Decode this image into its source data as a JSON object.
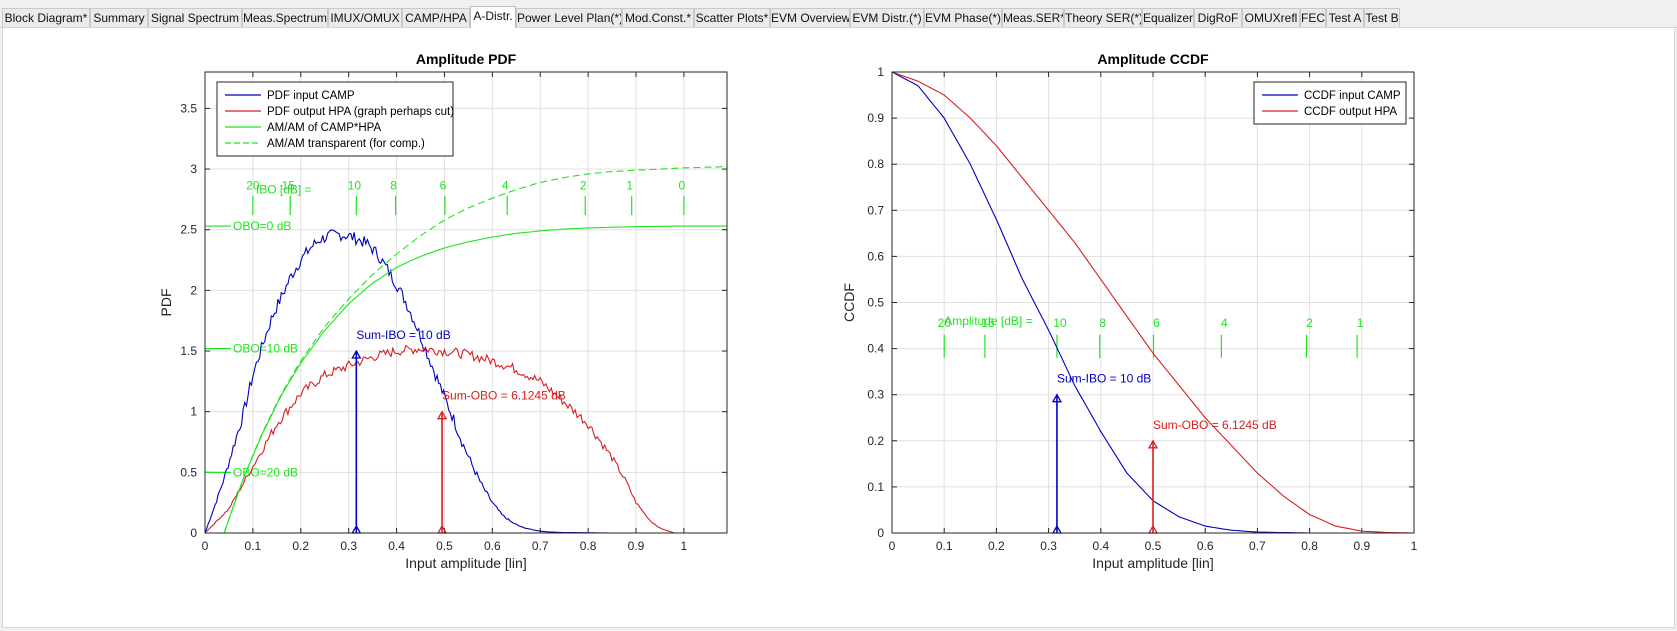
{
  "tabs": [
    {
      "label": "Block Diagram*"
    },
    {
      "label": "Summary"
    },
    {
      "label": "Signal Spectrum"
    },
    {
      "label": "Meas.Spectrum"
    },
    {
      "label": "IMUX/OMUX"
    },
    {
      "label": "CAMP/HPA"
    },
    {
      "label": "A-Distr.",
      "active": true
    },
    {
      "label": "Power Level Plan(*)"
    },
    {
      "label": "Mod.Const.*"
    },
    {
      "label": "Scatter Plots*"
    },
    {
      "label": "EVM Overview"
    },
    {
      "label": "EVM Distr.(*)"
    },
    {
      "label": "EVM Phase(*)"
    },
    {
      "label": "Meas.SER*"
    },
    {
      "label": "Theory SER(*)"
    },
    {
      "label": "Equalizer"
    },
    {
      "label": "DigRoF"
    },
    {
      "label": "OMUXrefl"
    },
    {
      "label": "FEC"
    },
    {
      "label": "Test A"
    },
    {
      "label": "Test B"
    }
  ],
  "colors": {
    "blue": "#0000bf",
    "red": "#d62020",
    "green": "#1ee61e",
    "grid": "#e0e0e0",
    "axis": "#262626"
  },
  "chart_data": [
    {
      "type": "line",
      "title": "Amplitude PDF",
      "xlabel": "Input amplitude [lin]",
      "ylabel": "PDF",
      "xlim": [
        0,
        1.09
      ],
      "ylim": [
        0,
        3.8
      ],
      "xticks": [
        0,
        0.1,
        0.2,
        0.3,
        0.4,
        0.5,
        0.6,
        0.7,
        0.8,
        0.9,
        1
      ],
      "yticks": [
        0,
        0.5,
        1,
        1.5,
        2,
        2.5,
        3,
        3.5
      ],
      "xtick_labels": [
        "0",
        "0.1",
        "0.2",
        "0.3",
        "0.4",
        "0.5",
        "0.6",
        "0.7",
        "0.8",
        "0.9",
        "1"
      ],
      "ytick_labels": [
        "0",
        "0.5",
        "1",
        "1.5",
        "2",
        "2.5",
        "3",
        "3.5"
      ],
      "grid": true,
      "legend": {
        "placement": "top-left",
        "entries": [
          {
            "label": "PDF input CAMP",
            "color": "#0000bf",
            "dash": false
          },
          {
            "label": "PDF output HPA (graph perhaps cut)",
            "color": "#d62020",
            "dash": false
          },
          {
            "label": "AM/AM of CAMP*HPA",
            "color": "#1ee61e",
            "dash": false
          },
          {
            "label": "AM/AM transparent (for comp.)",
            "color": "#1ee61e",
            "dash": true
          }
        ]
      },
      "series": [
        {
          "name": "PDF input CAMP",
          "color": "#0000bf",
          "dash": false,
          "noise": 0.05,
          "x": [
            0,
            0.02,
            0.04,
            0.06,
            0.08,
            0.1,
            0.12,
            0.14,
            0.16,
            0.18,
            0.2,
            0.22,
            0.24,
            0.26,
            0.28,
            0.3,
            0.32,
            0.34,
            0.36,
            0.38,
            0.4,
            0.42,
            0.44,
            0.46,
            0.48,
            0.5,
            0.52,
            0.54,
            0.56,
            0.58,
            0.6,
            0.62,
            0.64,
            0.66,
            0.68,
            0.7,
            0.72,
            0.75,
            0.8,
            0.85,
            0.9
          ],
          "y": [
            0,
            0.22,
            0.45,
            0.72,
            0.98,
            1.3,
            1.55,
            1.78,
            1.95,
            2.12,
            2.25,
            2.35,
            2.42,
            2.45,
            2.46,
            2.45,
            2.42,
            2.38,
            2.3,
            2.18,
            2.05,
            1.9,
            1.72,
            1.52,
            1.32,
            1.12,
            0.93,
            0.72,
            0.54,
            0.38,
            0.25,
            0.15,
            0.09,
            0.05,
            0.03,
            0.015,
            0.008,
            0.004,
            0.002,
            0,
            0
          ]
        },
        {
          "name": "PDF output HPA (graph perhaps cut)",
          "color": "#d62020",
          "dash": false,
          "noise": 0.04,
          "x": [
            0,
            0.05,
            0.1,
            0.15,
            0.2,
            0.25,
            0.3,
            0.35,
            0.4,
            0.45,
            0.5,
            0.55,
            0.6,
            0.65,
            0.7,
            0.75,
            0.8,
            0.85,
            0.88,
            0.9,
            0.93,
            0.95,
            0.98,
            1.0
          ],
          "y": [
            0,
            0.2,
            0.55,
            0.9,
            1.15,
            1.3,
            1.38,
            1.45,
            1.5,
            1.52,
            1.5,
            1.47,
            1.42,
            1.35,
            1.25,
            1.08,
            0.9,
            0.62,
            0.42,
            0.25,
            0.1,
            0.04,
            0,
            0
          ]
        },
        {
          "name": "AM/AM of CAMP*HPA",
          "color": "#1ee61e",
          "dash": false,
          "noise": 0,
          "x": [
            0.04,
            0.08,
            0.12,
            0.16,
            0.2,
            0.25,
            0.3,
            0.35,
            0.4,
            0.45,
            0.5,
            0.55,
            0.6,
            0.65,
            0.7,
            0.75,
            0.8,
            0.85,
            0.9,
            0.95,
            1.0,
            1.09
          ],
          "y": [
            0,
            0.45,
            0.82,
            1.14,
            1.4,
            1.67,
            1.89,
            2.06,
            2.19,
            2.28,
            2.35,
            2.4,
            2.44,
            2.47,
            2.49,
            2.505,
            2.515,
            2.52,
            2.525,
            2.528,
            2.53,
            2.53
          ]
        },
        {
          "name": "AM/AM transparent (for comp.)",
          "color": "#1ee61e",
          "dash": true,
          "noise": 0,
          "x": [
            0.04,
            0.08,
            0.12,
            0.16,
            0.2,
            0.25,
            0.3,
            0.35,
            0.4,
            0.45,
            0.5,
            0.55,
            0.6,
            0.65,
            0.7,
            0.75,
            0.8,
            0.85,
            0.9,
            0.95,
            1.0,
            1.09
          ],
          "y": [
            0,
            0.45,
            0.83,
            1.15,
            1.42,
            1.7,
            1.93,
            2.13,
            2.3,
            2.45,
            2.58,
            2.68,
            2.76,
            2.83,
            2.89,
            2.93,
            2.96,
            2.98,
            2.99,
            3.0,
            3.01,
            3.02
          ]
        }
      ],
      "markers": [
        {
          "label": "Sum-IBO = 10 dB",
          "x": 0.316,
          "y": 1.5,
          "color": "#0000bf"
        },
        {
          "label": "Sum-OBO = 6.1245 dB",
          "x": 0.495,
          "y": 1.0,
          "color": "#d62020"
        }
      ],
      "ibo_scale": {
        "title": "IBO [dB] =",
        "y_low": 2.62,
        "y_high": 2.78,
        "ticks": [
          {
            "label": "20",
            "x": 0.1
          },
          {
            "label": "15",
            "x": 0.178
          },
          {
            "label": "10",
            "x": 0.316
          },
          {
            "label": "8",
            "x": 0.398
          },
          {
            "label": "6",
            "x": 0.501
          },
          {
            "label": "4",
            "x": 0.631
          },
          {
            "label": "2",
            "x": 0.794
          },
          {
            "label": "1",
            "x": 0.891
          },
          {
            "label": "0",
            "x": 1.0
          }
        ]
      },
      "obo_labels": [
        {
          "label": "OBO=0 dB",
          "y": 2.53
        },
        {
          "label": "OBO=10 dB",
          "y": 1.52
        },
        {
          "label": "OBO=20 dB",
          "y": 0.5
        }
      ]
    },
    {
      "type": "line",
      "title": "Amplitude CCDF",
      "xlabel": "Input amplitude [lin]",
      "ylabel": "CCDF",
      "xlim": [
        0,
        1
      ],
      "ylim": [
        0,
        1
      ],
      "xticks": [
        0,
        0.1,
        0.2,
        0.3,
        0.4,
        0.5,
        0.6,
        0.7,
        0.8,
        0.9,
        1
      ],
      "yticks": [
        0,
        0.1,
        0.2,
        0.3,
        0.4,
        0.5,
        0.6,
        0.7,
        0.8,
        0.9,
        1
      ],
      "xtick_labels": [
        "0",
        "0.1",
        "0.2",
        "0.3",
        "0.4",
        "0.5",
        "0.6",
        "0.7",
        "0.8",
        "0.9",
        "1"
      ],
      "ytick_labels": [
        "0",
        "0.1",
        "0.2",
        "0.3",
        "0.4",
        "0.5",
        "0.6",
        "0.7",
        "0.8",
        "0.9",
        "1"
      ],
      "grid": true,
      "legend": {
        "placement": "top-right",
        "entries": [
          {
            "label": "CCDF input CAMP",
            "color": "#0000bf",
            "dash": false
          },
          {
            "label": "CCDF output HPA",
            "color": "#d62020",
            "dash": false
          }
        ]
      },
      "series": [
        {
          "name": "CCDF input CAMP",
          "color": "#0000bf",
          "dash": false,
          "noise": 0,
          "x": [
            0,
            0.05,
            0.1,
            0.15,
            0.2,
            0.25,
            0.3,
            0.35,
            0.4,
            0.45,
            0.5,
            0.55,
            0.6,
            0.65,
            0.7,
            0.75,
            0.8,
            0.85,
            0.9,
            1.0
          ],
          "y": [
            1,
            0.97,
            0.9,
            0.8,
            0.68,
            0.55,
            0.44,
            0.32,
            0.22,
            0.13,
            0.07,
            0.035,
            0.015,
            0.006,
            0.002,
            0.001,
            0,
            0,
            0,
            0
          ]
        },
        {
          "name": "CCDF output HPA",
          "color": "#d62020",
          "dash": false,
          "noise": 0,
          "x": [
            0,
            0.05,
            0.1,
            0.15,
            0.2,
            0.25,
            0.3,
            0.35,
            0.4,
            0.45,
            0.5,
            0.55,
            0.6,
            0.65,
            0.7,
            0.75,
            0.8,
            0.85,
            0.9,
            0.95,
            1.0
          ],
          "y": [
            1,
            0.98,
            0.95,
            0.9,
            0.84,
            0.77,
            0.7,
            0.63,
            0.55,
            0.47,
            0.39,
            0.32,
            0.25,
            0.19,
            0.13,
            0.08,
            0.04,
            0.015,
            0.004,
            0.001,
            0
          ]
        }
      ],
      "markers": [
        {
          "label": "Sum-IBO = 10 dB",
          "x": 0.316,
          "y": 0.3,
          "color": "#0000bf"
        },
        {
          "label": "Sum-OBO = 6.1245 dB",
          "x": 0.5,
          "y": 0.2,
          "color": "#d62020"
        }
      ],
      "ibo_scale": {
        "title": "Amplitude [dB] =",
        "y_low": 0.38,
        "y_high": 0.43,
        "ticks": [
          {
            "label": "20",
            "x": 0.1
          },
          {
            "label": "15",
            "x": 0.178
          },
          {
            "label": "10",
            "x": 0.316
          },
          {
            "label": "8",
            "x": 0.398
          },
          {
            "label": "6",
            "x": 0.501
          },
          {
            "label": "4",
            "x": 0.631
          },
          {
            "label": "2",
            "x": 0.794
          },
          {
            "label": "1",
            "x": 0.891
          }
        ]
      },
      "obo_labels": []
    }
  ]
}
